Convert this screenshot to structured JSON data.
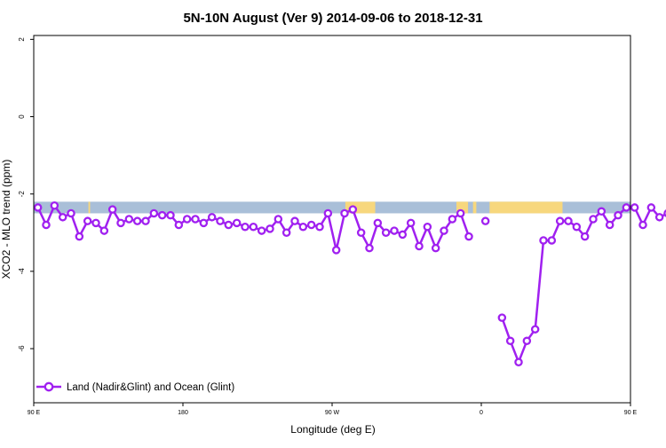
{
  "chart_data": {
    "type": "line",
    "title": "5N-10N August (Ver 9)   2014-09-06 to 2018-12-31",
    "xlabel": "Longitude (deg E)",
    "ylabel": "XCO2 - MLO trend (ppm)",
    "xlim": [
      90,
      450
    ],
    "ylim": [
      -7.4,
      2.1
    ],
    "x_ticks": [
      {
        "value": 90,
        "label": "90 E"
      },
      {
        "value": 180,
        "label": "180"
      },
      {
        "value": 270,
        "label": "90 W"
      },
      {
        "value": 360,
        "label": "0"
      },
      {
        "value": 450,
        "label": "90 E"
      },
      {
        "value": 540,
        "label": "180"
      }
    ],
    "y_ticks": [
      {
        "value": 2,
        "label": "2"
      },
      {
        "value": 0,
        "label": "0"
      },
      {
        "value": -2,
        "label": "-2"
      },
      {
        "value": -4,
        "label": "-4"
      },
      {
        "value": -6,
        "label": "-6"
      }
    ],
    "legend": {
      "position": "bottom-left"
    },
    "colors": {
      "series": "#a020f0",
      "ocean": "#a9bfd8",
      "land": "#f7d77d"
    },
    "series": [
      {
        "name": "Land (Nadir&Glint) and Ocean (Glint)",
        "color": "#a020f0",
        "points": [
          [
            92.5,
            -2.35
          ],
          [
            97.5,
            -2.8
          ],
          [
            102.5,
            -2.3
          ],
          [
            107.5,
            -2.6
          ],
          [
            112.5,
            -2.5
          ],
          [
            117.5,
            -3.1
          ],
          [
            122.5,
            -2.7
          ],
          [
            127.5,
            -2.75
          ],
          [
            132.5,
            -2.95
          ],
          [
            137.5,
            -2.4
          ],
          [
            142.5,
            -2.75
          ],
          [
            147.5,
            -2.65
          ],
          [
            152.5,
            -2.7
          ],
          [
            157.5,
            -2.7
          ],
          [
            162.5,
            -2.5
          ],
          [
            167.5,
            -2.55
          ],
          [
            172.5,
            -2.55
          ],
          [
            177.5,
            -2.8
          ],
          [
            182.5,
            -2.65
          ],
          [
            187.5,
            -2.65
          ],
          [
            192.5,
            -2.75
          ],
          [
            197.5,
            -2.6
          ],
          [
            202.5,
            -2.7
          ],
          [
            207.5,
            -2.8
          ],
          [
            212.5,
            -2.75
          ],
          [
            217.5,
            -2.85
          ],
          [
            222.5,
            -2.85
          ],
          [
            227.5,
            -2.95
          ],
          [
            232.5,
            -2.9
          ],
          [
            237.5,
            -2.65
          ],
          [
            242.5,
            -3.0
          ],
          [
            247.5,
            -2.7
          ],
          [
            252.5,
            -2.85
          ],
          [
            257.5,
            -2.8
          ],
          [
            262.5,
            -2.85
          ],
          [
            267.5,
            -2.5
          ],
          [
            272.5,
            -3.45
          ],
          [
            277.5,
            -2.5
          ],
          [
            282.5,
            -2.4
          ],
          [
            287.5,
            -3.0
          ],
          [
            292.5,
            -3.4
          ],
          [
            297.5,
            -2.75
          ],
          [
            302.5,
            -3.0
          ],
          [
            307.5,
            -2.95
          ],
          [
            312.5,
            -3.05
          ],
          [
            317.5,
            -2.75
          ],
          [
            322.5,
            -3.35
          ],
          [
            327.5,
            -2.85
          ],
          [
            332.5,
            -3.4
          ],
          [
            337.5,
            -2.95
          ],
          [
            342.5,
            -2.65
          ],
          [
            347.5,
            -2.5
          ],
          [
            352.5,
            -3.1
          ],
          null,
          [
            362.5,
            -2.7
          ],
          null,
          [
            372.5,
            -5.2
          ],
          [
            377.5,
            -5.8
          ],
          [
            382.5,
            -6.35
          ],
          [
            387.5,
            -5.8
          ],
          [
            392.5,
            -5.5
          ],
          [
            397.5,
            -3.2
          ],
          [
            402.5,
            -3.2
          ],
          [
            407.5,
            -2.7
          ],
          [
            412.5,
            -2.7
          ],
          [
            417.5,
            -2.85
          ],
          [
            422.5,
            -3.1
          ],
          [
            427.5,
            -2.65
          ],
          [
            432.5,
            -2.45
          ],
          [
            437.5,
            -2.8
          ],
          [
            442.5,
            -2.55
          ],
          [
            447.5,
            -2.35
          ],
          [
            452.5,
            -2.35
          ],
          [
            457.5,
            -2.8
          ],
          [
            462.5,
            -2.35
          ],
          [
            467.5,
            -2.6
          ],
          [
            472.5,
            -2.5
          ],
          [
            477.5,
            -3.1
          ],
          [
            482.5,
            -2.65
          ],
          [
            487.5,
            -2.7
          ],
          [
            492.5,
            -2.95
          ],
          [
            497.5,
            -2.4
          ],
          [
            502.5,
            -2.75
          ],
          [
            507.5,
            -2.65
          ],
          [
            512.5,
            -2.7
          ],
          [
            517.5,
            -2.7
          ],
          [
            522.5,
            -2.55
          ],
          [
            527.5,
            -2.6
          ],
          [
            532.5,
            -2.6
          ],
          [
            537.5,
            -2.8
          ]
        ]
      }
    ],
    "surface_band": {
      "y_top": -2.2,
      "y_bottom": -2.5,
      "ocean_color": "#a9bfd8",
      "land_color": "#f7d77d",
      "land_segments": [
        [
          123,
          124
        ],
        [
          278,
          281
        ],
        [
          281,
          296
        ],
        [
          345,
          352
        ],
        [
          355,
          357
        ],
        [
          365,
          409
        ],
        [
          464,
          466
        ],
        [
          509,
          511
        ]
      ]
    }
  }
}
